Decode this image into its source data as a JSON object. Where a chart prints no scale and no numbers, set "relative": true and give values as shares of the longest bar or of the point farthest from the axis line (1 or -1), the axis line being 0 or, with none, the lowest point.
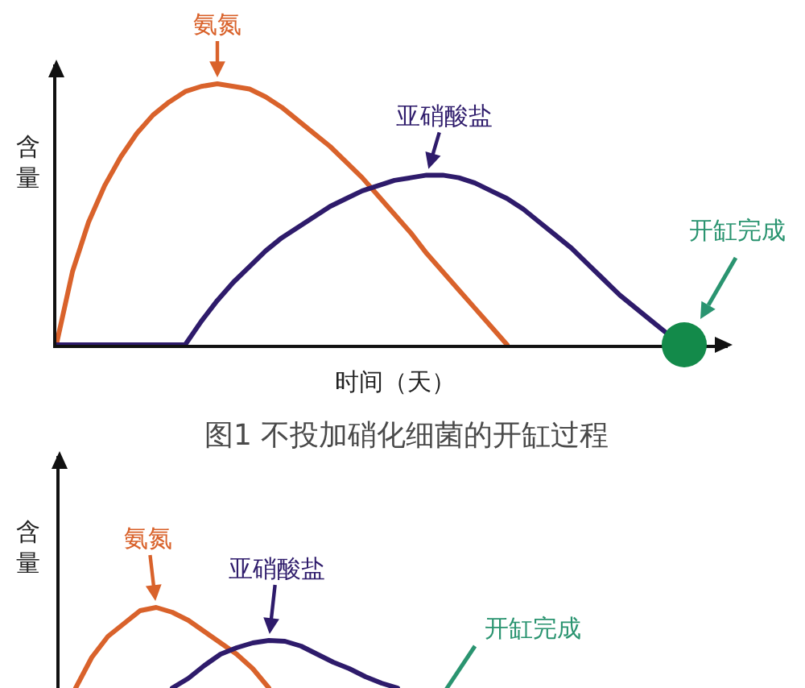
{
  "chart_data": [
    {
      "type": "line",
      "relative": true,
      "xlabel": "时间（天）",
      "ylabel": "含量",
      "annotations": [
        "图1 不投加硝化细菌的开缸过程"
      ],
      "categories": [
        null,
        null,
        null,
        null,
        null,
        null,
        null,
        null,
        null,
        null,
        null,
        null,
        null,
        null,
        null,
        null,
        null,
        null,
        null,
        null,
        null,
        null,
        null,
        null,
        null,
        null,
        null,
        null,
        null,
        null,
        null,
        null,
        null,
        null,
        null,
        null,
        null,
        null,
        null,
        null,
        null,
        null
      ],
      "series": [
        {
          "name": "氨氮",
          "color": "#d9622b",
          "values": [
            0,
            0.28,
            0.47,
            0.61,
            0.72,
            0.81,
            0.88,
            0.93,
            0.97,
            0.99,
            1,
            0.99,
            0.98,
            0.95,
            0.91,
            0.86,
            0.81,
            0.76,
            0.7,
            0.64,
            0.57,
            0.5,
            0.43,
            0.35,
            0.28,
            0.21,
            0.14,
            0.07,
            0,
            null,
            null,
            null,
            null,
            null,
            null,
            null,
            null,
            null,
            null,
            null,
            null,
            null
          ]
        },
        {
          "name": "亚硝酸盐",
          "color": "#2e1b6b",
          "values": [
            0,
            0,
            0,
            0,
            0,
            0,
            0,
            0,
            0,
            0.09,
            0.17,
            0.24,
            0.3,
            0.36,
            0.41,
            0.45,
            0.49,
            0.53,
            0.56,
            0.59,
            0.61,
            0.63,
            0.64,
            0.65,
            0.65,
            0.64,
            0.62,
            0.59,
            0.56,
            0.52,
            0.47,
            0.42,
            0.37,
            0.31,
            0.25,
            0.19,
            0.14,
            0.09,
            0.04,
            0,
            null,
            null
          ]
        },
        {
          "name": "开缸完成",
          "marker": "circle",
          "color": "#138a4a",
          "values": [
            null,
            null,
            null,
            null,
            null,
            null,
            null,
            null,
            null,
            null,
            null,
            null,
            null,
            null,
            null,
            null,
            null,
            null,
            null,
            null,
            null,
            null,
            null,
            null,
            null,
            null,
            null,
            null,
            null,
            null,
            null,
            null,
            null,
            null,
            null,
            null,
            null,
            null,
            null,
            0,
            null,
            null
          ]
        }
      ]
    },
    {
      "type": "line",
      "relative": true,
      "ylabel": "含量",
      "annotations": [
        "开缸完成"
      ],
      "categories": [
        null,
        null,
        null,
        null,
        null,
        null,
        null,
        null,
        null,
        null,
        null,
        null,
        null,
        null,
        null,
        null,
        null,
        null,
        null,
        null,
        null,
        null
      ],
      "series": [
        {
          "name": "氨氮",
          "color": "#d9622b",
          "values": [
            null,
            0,
            0.38,
            0.64,
            0.8,
            0.96,
            1,
            0.94,
            0.84,
            0.7,
            0.56,
            0.42,
            0.24,
            0,
            null,
            null,
            null,
            null,
            null,
            null,
            null,
            null
          ]
        },
        {
          "name": "亚硝酸盐",
          "color": "#2e1b6b",
          "values": [
            null,
            null,
            null,
            null,
            null,
            null,
            null,
            0,
            0.12,
            0.28,
            0.42,
            0.5,
            0.56,
            0.59,
            0.58,
            0.52,
            0.42,
            0.32,
            0.24,
            0.14,
            0.06,
            0
          ]
        }
      ]
    }
  ]
}
